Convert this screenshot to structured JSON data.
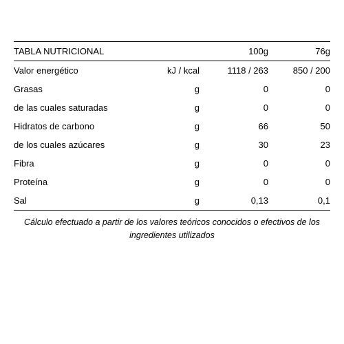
{
  "table": {
    "title": "TABLA NUTRICIONAL",
    "columns": {
      "col1": "100g",
      "col2": "76g"
    },
    "rows": [
      {
        "label": "Valor energético",
        "unit": "kJ / kcal",
        "col1": "1118 / 263",
        "col2": "850 / 200"
      },
      {
        "label": "Grasas",
        "unit": "g",
        "col1": "0",
        "col2": "0"
      },
      {
        "label": "de las cuales saturadas",
        "unit": "g",
        "col1": "0",
        "col2": "0"
      },
      {
        "label": "Hidratos de carbono",
        "unit": "g",
        "col1": "66",
        "col2": "50"
      },
      {
        "label": "de los cuales azúcares",
        "unit": "g",
        "col1": "30",
        "col2": "23"
      },
      {
        "label": "Fibra",
        "unit": "g",
        "col1": "0",
        "col2": "0"
      },
      {
        "label": "Proteína",
        "unit": "g",
        "col1": "0",
        "col2": "0"
      },
      {
        "label": "Sal",
        "unit": "g",
        "col1": "0,13",
        "col2": "0,1"
      }
    ],
    "footnote": "Cálculo efectuado a partir de los valores teóricos conocidos o efectivos de los ingredientes utilizados"
  },
  "style": {
    "text_color": "#000000",
    "background_color": "#ffffff",
    "border_color": "#000000",
    "font_size": 13,
    "footnote_font_size": 12.5,
    "label_col_width": 200,
    "unit_col_width": 70,
    "col2_width": 80
  }
}
